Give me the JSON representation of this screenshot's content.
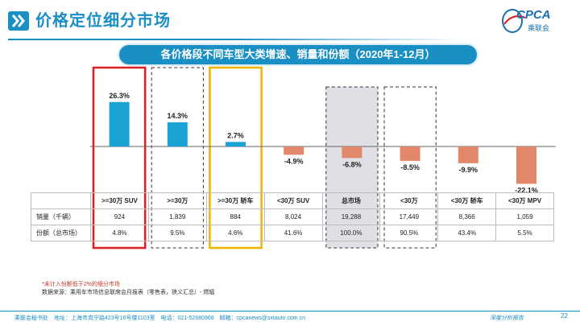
{
  "header": {
    "title": "价格定位细分市场"
  },
  "logo": {
    "text": "CPCA",
    "subtitle": "乘联会"
  },
  "banner": {
    "text": "各价格段不同车型大类增速、销量和份额（2020年1-12月）"
  },
  "chart_data": {
    "type": "bar",
    "title": "各价格段不同车型大类增速、销量和份额（2020年1-12月）",
    "categories": [
      ">=30万 SUV",
      ">=30万",
      ">=30万 轿车",
      "<30万 SUV",
      "总市场",
      "<30万",
      "<30万 轿车",
      "<30万 MPV"
    ],
    "series": [
      {
        "name": "增速",
        "values": [
          26.3,
          14.3,
          2.7,
          -4.9,
          -6.8,
          -8.5,
          -9.9,
          -22.1
        ]
      }
    ],
    "data_labels": [
      "26.3%",
      "14.3%",
      "2.7%",
      "-4.9%",
      "-6.8%",
      "-8.5%",
      "-9.9%",
      "-22.1%"
    ],
    "ylim": [
      -25,
      30
    ],
    "colors": {
      "positive": "#1aa2d4",
      "negative": "#e2876a"
    }
  },
  "table": {
    "headers": [
      ">=30万 SUV",
      ">=30万",
      ">=30万 轿车",
      "<30万 SUV",
      "总市场",
      "<30万",
      "<30万 轿车",
      "<30万 MPV"
    ],
    "rows": [
      {
        "label": "销量（千辆）",
        "values": [
          "924",
          "1,839",
          "884",
          "8,024",
          "19,288",
          "17,449",
          "8,366",
          "1,059"
        ]
      },
      {
        "label": "份额（总市场）",
        "values": [
          "4.8%",
          "9.5%",
          "4.6%",
          "41.6%",
          "100.0%",
          "90.5%",
          "43.4%",
          "5.5%"
        ]
      }
    ]
  },
  "notes": {
    "line1": "*未计入份额低于2%的细分市场",
    "line2": "数据来源：乘用车市场信息联席会月报表（零售表，狭义汇总）- 燃辐"
  },
  "footer": {
    "text": "乘联会秘书处　地址：上海市岚宁路423号16号楼1103室　电话：021-52680968　邮箱：cpcanews@sxtauto.com.cn",
    "right": "深度分析报告",
    "page": "22"
  },
  "colors": {
    "accent": "#1a8fc4",
    "red_box": "#e02020",
    "yellow_box": "#f0b400"
  }
}
